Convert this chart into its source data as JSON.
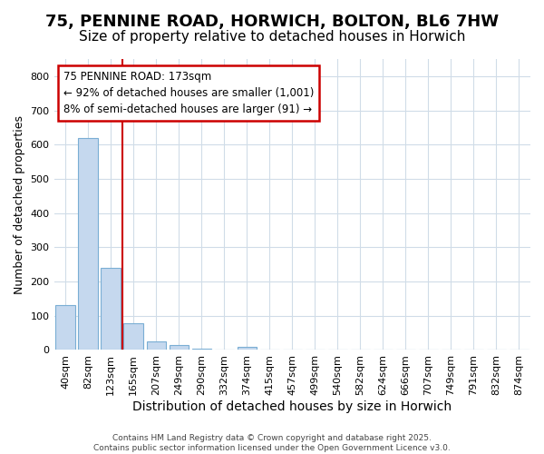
{
  "title": "75, PENNINE ROAD, HORWICH, BOLTON, BL6 7HW",
  "subtitle": "Size of property relative to detached houses in Horwich",
  "xlabel": "Distribution of detached houses by size in Horwich",
  "ylabel": "Number of detached properties",
  "categories": [
    "40sqm",
    "82sqm",
    "123sqm",
    "165sqm",
    "207sqm",
    "249sqm",
    "290sqm",
    "332sqm",
    "374sqm",
    "415sqm",
    "457sqm",
    "499sqm",
    "540sqm",
    "582sqm",
    "624sqm",
    "666sqm",
    "707sqm",
    "749sqm",
    "791sqm",
    "832sqm",
    "874sqm"
  ],
  "values": [
    130,
    620,
    240,
    78,
    25,
    15,
    5,
    0,
    8,
    0,
    0,
    0,
    0,
    0,
    0,
    0,
    0,
    0,
    0,
    0,
    0
  ],
  "bar_color": "#c5d8ee",
  "bar_edge_color": "#7aaed4",
  "ylim": [
    0,
    850
  ],
  "yticks": [
    0,
    100,
    200,
    300,
    400,
    500,
    600,
    700,
    800
  ],
  "vline_x": 2.5,
  "vline_color": "#cc0000",
  "annotation_text": "75 PENNINE ROAD: 173sqm\n← 92% of detached houses are smaller (1,001)\n8% of semi-detached houses are larger (91) →",
  "annotation_box_color": "#cc0000",
  "footer_text": "Contains HM Land Registry data © Crown copyright and database right 2025.\nContains public sector information licensed under the Open Government Licence v3.0.",
  "background_color": "#ffffff",
  "plot_background": "#ffffff",
  "grid_color": "#d0dce8",
  "title_fontsize": 13,
  "subtitle_fontsize": 11,
  "tick_fontsize": 8,
  "ylabel_fontsize": 9,
  "xlabel_fontsize": 10
}
